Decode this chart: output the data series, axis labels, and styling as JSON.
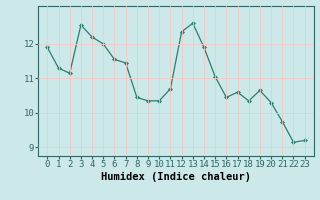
{
  "x": [
    0,
    1,
    2,
    3,
    4,
    5,
    6,
    7,
    8,
    9,
    10,
    11,
    12,
    13,
    14,
    15,
    16,
    17,
    18,
    19,
    20,
    21,
    22,
    23
  ],
  "y": [
    11.9,
    11.3,
    11.15,
    12.55,
    12.2,
    12.0,
    11.55,
    11.45,
    10.45,
    10.35,
    10.35,
    10.7,
    12.35,
    12.6,
    11.9,
    11.05,
    10.45,
    10.6,
    10.35,
    10.65,
    10.3,
    9.75,
    9.15,
    9.2
  ],
  "line_color": "#2d7d6f",
  "marker": "D",
  "marker_size": 2,
  "bg_color": "#cce8e8",
  "grid_color": "#f0c8c8",
  "xlabel": "Humidex (Indice chaleur)",
  "ylim": [
    8.75,
    13.1
  ],
  "yticks": [
    9,
    10,
    11,
    12
  ],
  "xticks": [
    0,
    1,
    2,
    3,
    4,
    5,
    6,
    7,
    8,
    9,
    10,
    11,
    12,
    13,
    14,
    15,
    16,
    17,
    18,
    19,
    20,
    21,
    22,
    23
  ],
  "tick_fontsize": 6.5,
  "xlabel_fontsize": 7.5
}
